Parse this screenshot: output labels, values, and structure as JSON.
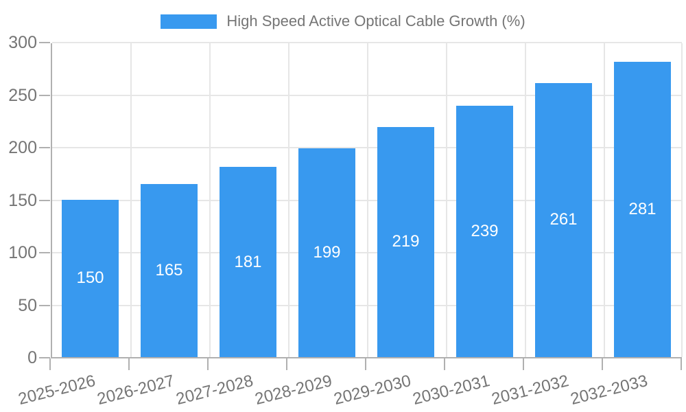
{
  "chart_data": {
    "type": "bar",
    "title": "High Speed Active Optical Cable Growth (%)",
    "legend_position": "top",
    "categories": [
      "2025-2026",
      "2026-2027",
      "2027-2028",
      "2028-2029",
      "2029-2030",
      "2030-2031",
      "2031-2032",
      "2032-2033"
    ],
    "series": [
      {
        "name": "High Speed Active Optical Cable Growth (%)",
        "values": [
          150,
          165,
          181,
          199,
          219,
          239,
          261,
          281
        ]
      }
    ],
    "xlabel": "",
    "ylabel": "",
    "ylim": [
      0,
      300
    ],
    "yticks": [
      0,
      50,
      100,
      150,
      200,
      250,
      300
    ],
    "grid": true,
    "bar_labels_shown": true,
    "colors": {
      "bar": "#3899EF",
      "bar_label_text": "#FFFFFF",
      "axis_line": "#B0B0B0",
      "gridline": "#E6E6E6",
      "tick_text": "#757575",
      "background": "#FFFFFF"
    }
  }
}
